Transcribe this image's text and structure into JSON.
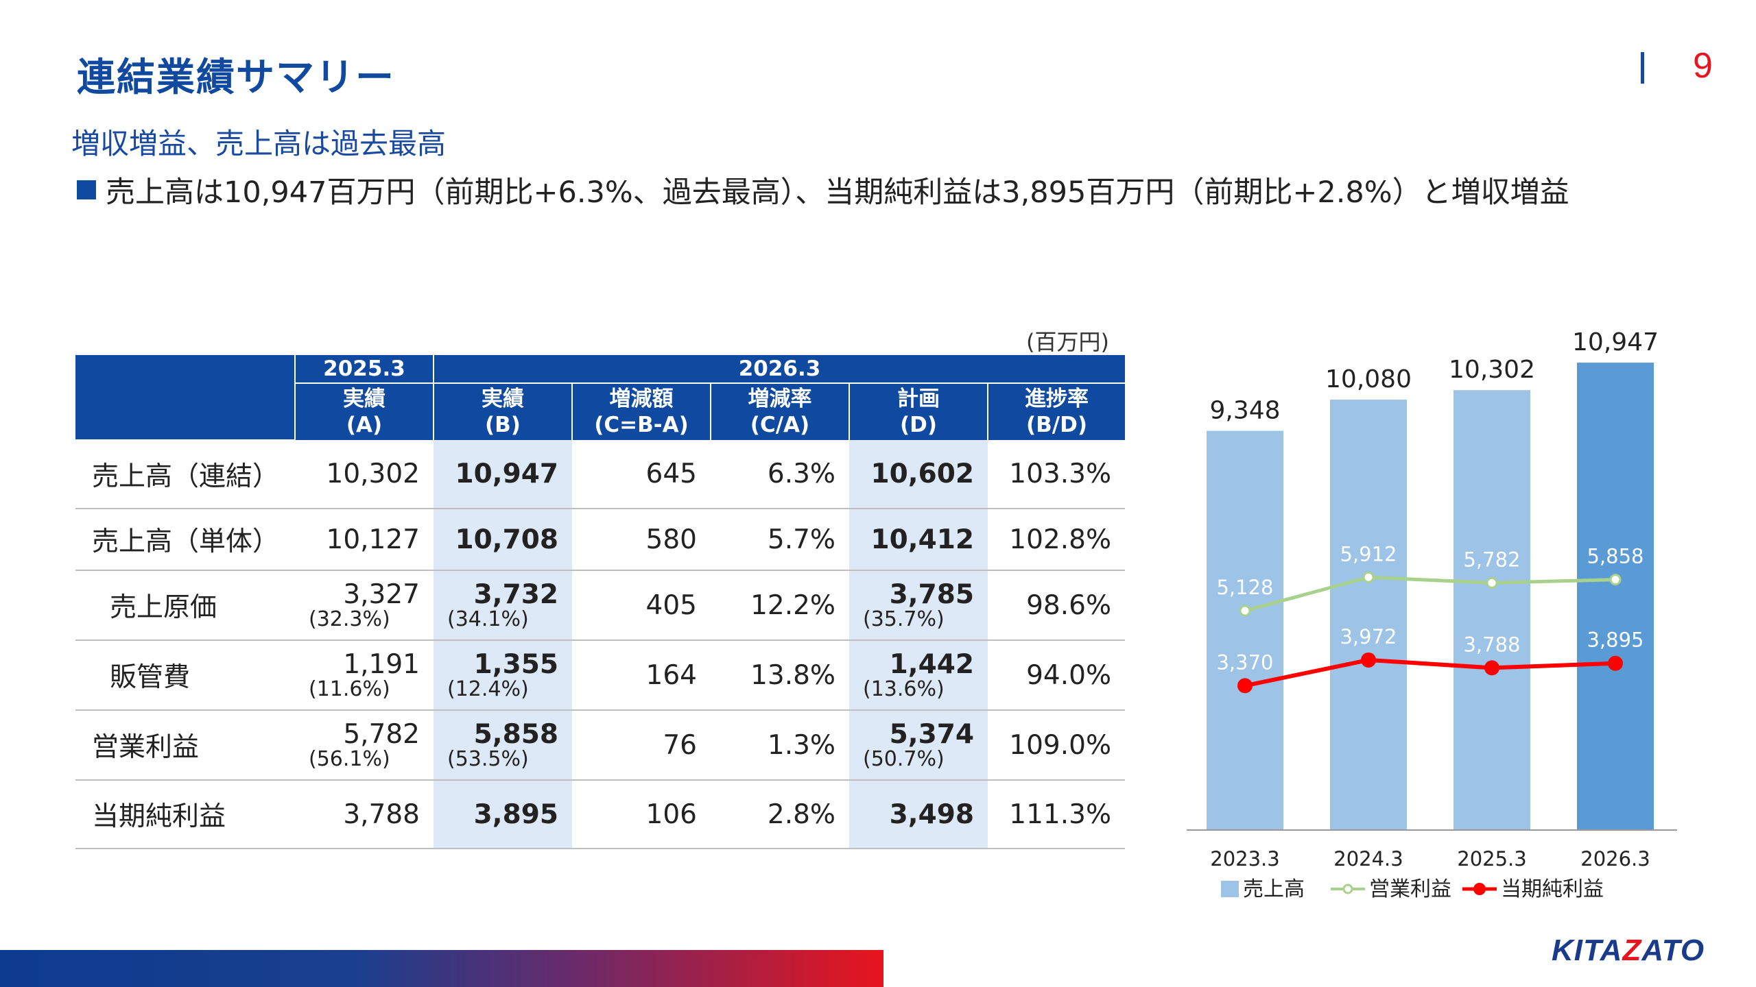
{
  "header": {
    "title": "連結業績サマリー",
    "page_number": "9"
  },
  "subtitle": "増収増益、売上高は過去最高",
  "bullet": "売上高は10,947百万円（前期比+6.3%、過去最高）、当期純利益は3,895百万円（前期比+2.8%）と増収増益",
  "table": {
    "unit": "(百万円)",
    "group_headers": [
      "2025.3",
      "2026.3"
    ],
    "columns": [
      {
        "line1": "実績",
        "line2": "(A)"
      },
      {
        "line1": "実績",
        "line2": "(B)"
      },
      {
        "line1": "増減額",
        "line2": "(C=B-A)"
      },
      {
        "line1": "増減率",
        "line2": "(C/A)"
      },
      {
        "line1": "計画",
        "line2": "(D)"
      },
      {
        "line1": "進捗率",
        "line2": "(B/D)"
      }
    ],
    "rows": [
      {
        "label": "売上高（連結）",
        "a": "10,302",
        "b": "10,947",
        "c": "645",
        "ca": "6.3%",
        "d": "10,602",
        "bd": "103.3%"
      },
      {
        "label": "売上高（単体）",
        "a": "10,127",
        "b": "10,708",
        "c": "580",
        "ca": "5.7%",
        "d": "10,412",
        "bd": "102.8%"
      },
      {
        "label": "売上原価",
        "a": "3,327",
        "a_pct": "(32.3%)",
        "b": "3,732",
        "b_pct": "(34.1%)",
        "c": "405",
        "ca": "12.2%",
        "d": "3,785",
        "d_pct": "(35.7%)",
        "bd": "98.6%"
      },
      {
        "label": "販管費",
        "a": "1,191",
        "a_pct": "(11.6%)",
        "b": "1,355",
        "b_pct": "(12.4%)",
        "c": "164",
        "ca": "13.8%",
        "d": "1,442",
        "d_pct": "(13.6%)",
        "bd": "94.0%"
      },
      {
        "label": "営業利益",
        "a": "5,782",
        "a_pct": "(56.1%)",
        "b": "5,858",
        "b_pct": "(53.5%)",
        "c": "76",
        "ca": "1.3%",
        "d": "5,374",
        "d_pct": "(50.7%)",
        "bd": "109.0%"
      },
      {
        "label": "当期純利益",
        "a": "3,788",
        "b": "3,895",
        "c": "106",
        "ca": "2.8%",
        "d": "3,498",
        "bd": "111.3%"
      }
    ]
  },
  "chart_data": {
    "type": "bar",
    "categories": [
      "2023.3",
      "2024.3",
      "2025.3",
      "2026.3"
    ],
    "series": [
      {
        "name": "売上高",
        "type": "bar",
        "values": [
          9348,
          10080,
          10302,
          10947
        ],
        "labels": [
          "9,348",
          "10,080",
          "10,302",
          "10,947"
        ],
        "color": "#9dc3e6",
        "highlight_color": "#5b9bd5"
      },
      {
        "name": "営業利益",
        "type": "line",
        "values": [
          5128,
          5912,
          5782,
          5858
        ],
        "labels": [
          "5,128",
          "5,912",
          "5,782",
          "5,858"
        ],
        "color": "#a9d18e"
      },
      {
        "name": "当期純利益",
        "type": "line",
        "values": [
          3370,
          3972,
          3788,
          3895
        ],
        "labels": [
          "3,370",
          "3,972",
          "3,788",
          "3,895"
        ],
        "color": "#ff0000"
      }
    ],
    "legend": "bottom",
    "grid": false
  },
  "colors": {
    "brand": "#0f4aa0",
    "accent": "#e8141d",
    "highlight": "#dde9f6"
  },
  "logo": {
    "text_a": "KITA",
    "text_z": "Z",
    "text_b": "ATO"
  }
}
